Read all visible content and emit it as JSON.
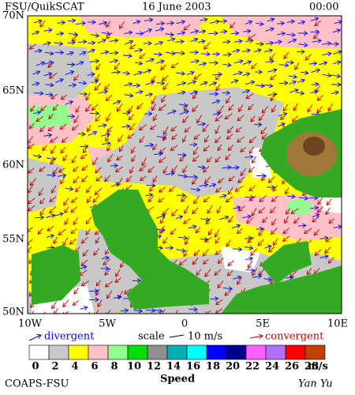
{
  "header": {
    "title": "FSU/QuikSCAT",
    "date": "16 June 2003",
    "time": "00:00"
  },
  "latitude_labels": [
    "70N",
    "65N",
    "60N",
    "55N",
    "50N"
  ],
  "longitude_labels": [
    "10W",
    "5W",
    "0",
    "5E",
    "10E"
  ],
  "legend": {
    "divergent": "divergent",
    "scale": "scale",
    "scale_value": "10 m/s",
    "convergent": "convergent"
  },
  "colorbar": {
    "ticks": [
      0,
      2,
      4,
      6,
      8,
      10,
      12,
      14,
      16,
      18,
      20,
      22,
      24,
      26,
      28
    ],
    "unit": "m/s",
    "label": "Speed",
    "colors": [
      "#ffffff",
      "#c8c8c8",
      "#ffff00",
      "#ffc0c8",
      "#90ff90",
      "#00e000",
      "#909090",
      "#00b0b0",
      "#00ffff",
      "#0000ff",
      "#000090",
      "#ff60ff",
      "#b070ff",
      "#ff0000",
      "#c04000"
    ]
  },
  "footer": {
    "left": "COAPS-FSU",
    "right": "Yan Yu"
  }
}
